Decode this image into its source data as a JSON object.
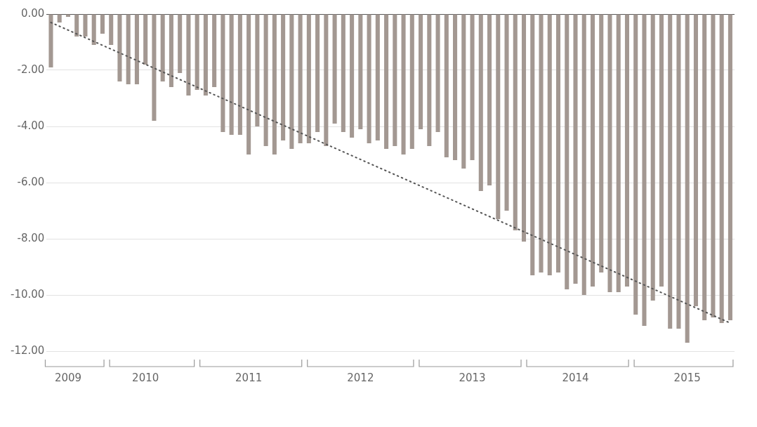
{
  "chart_data": {
    "type": "bar",
    "categories": [
      null,
      null,
      "2009",
      null,
      null,
      null,
      null,
      null,
      null,
      null,
      null,
      "2010",
      null,
      null,
      null,
      null,
      null,
      null,
      null,
      null,
      null,
      null,
      null,
      "2011",
      null,
      null,
      null,
      null,
      null,
      null,
      null,
      null,
      null,
      null,
      null,
      null,
      "2012",
      null,
      null,
      null,
      null,
      null,
      null,
      null,
      null,
      null,
      null,
      null,
      null,
      "2013",
      null,
      null,
      null,
      null,
      null,
      null,
      null,
      null,
      null,
      null,
      null,
      "2014",
      null,
      null,
      null,
      null,
      null,
      null,
      null,
      null,
      null,
      null,
      null,
      null,
      "2015",
      null,
      null,
      null,
      null,
      null
    ],
    "series": [
      {
        "color": "#a39892",
        "values": [
          -1.9,
          -0.3,
          -0.1,
          -0.8,
          -0.8,
          -1.1,
          -0.7,
          -1.1,
          -2.4,
          -2.5,
          -2.5,
          -1.8,
          -3.8,
          -2.4,
          -2.6,
          -2.1,
          -2.9,
          -2.7,
          -2.9,
          -2.6,
          -4.2,
          -4.3,
          -4.3,
          -5.0,
          -4.0,
          -4.7,
          -5.0,
          -4.5,
          -4.8,
          -4.6,
          -4.6,
          -4.2,
          -4.7,
          -3.9,
          -4.2,
          -4.4,
          -4.1,
          -4.6,
          -4.5,
          -4.8,
          -4.7,
          -5.0,
          -4.8,
          -4.1,
          -4.7,
          -4.2,
          -5.1,
          -5.2,
          -5.5,
          -5.2,
          -6.3,
          -6.1,
          -7.3,
          -7.0,
          -7.7,
          -8.1,
          -9.3,
          -9.2,
          -9.3,
          -9.2,
          -9.8,
          -9.6,
          -10.0,
          -9.7,
          -9.2,
          -9.9,
          -9.9,
          -9.7,
          -10.7,
          -11.1,
          -10.2,
          -9.7,
          -11.2,
          -11.2,
          -11.7,
          -10.4,
          -10.9,
          -10.8,
          -11.0,
          -10.9
        ]
      },
      {
        "type": "line",
        "color": "#555555",
        "line_style": "dotted",
        "values": [
          -0.3,
          null,
          null,
          null,
          null,
          null,
          null,
          null,
          null,
          null,
          null,
          null,
          null,
          null,
          null,
          null,
          null,
          null,
          null,
          null,
          null,
          null,
          null,
          null,
          null,
          null,
          null,
          null,
          null,
          null,
          null,
          null,
          null,
          null,
          null,
          null,
          null,
          null,
          null,
          null,
          null,
          null,
          null,
          null,
          null,
          null,
          null,
          null,
          null,
          null,
          null,
          null,
          null,
          null,
          null,
          null,
          null,
          null,
          null,
          null,
          null,
          null,
          null,
          null,
          null,
          null,
          null,
          null,
          null,
          null,
          null,
          null,
          null,
          null,
          null,
          null,
          null,
          null,
          null,
          -11.0
        ]
      }
    ],
    "ylim": [
      -12,
      0
    ],
    "yticks": [
      {
        "value": 0,
        "label": "0.00"
      },
      {
        "value": -2,
        "label": "-2.00"
      },
      {
        "value": -4,
        "label": "-4.00"
      },
      {
        "value": -6,
        "label": "-6.00"
      },
      {
        "value": -8,
        "label": "-8.00"
      },
      {
        "value": -10,
        "label": "-10.00"
      },
      {
        "value": -12,
        "label": "-12.00"
      }
    ],
    "grid": "y"
  }
}
